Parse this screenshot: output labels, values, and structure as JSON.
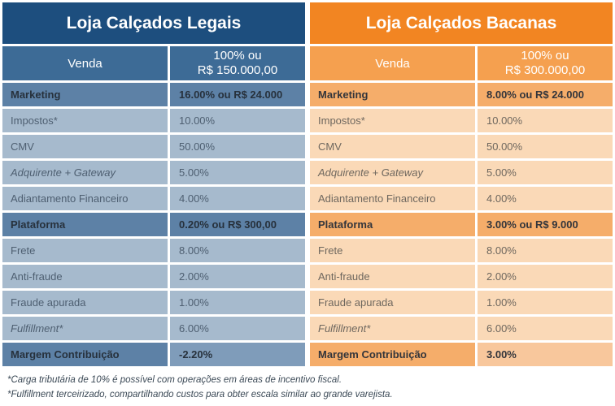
{
  "page": {
    "background": "#ffffff"
  },
  "chart_data": [
    {
      "type": "table",
      "title": "Loja Calçados Legais",
      "columns": [
        "Venda",
        "100% ou R$ 150.000,00"
      ],
      "rows": [
        [
          "Marketing",
          "16.00% ou R$ 24.000"
        ],
        [
          "Impostos*",
          "10.00%"
        ],
        [
          "CMV",
          "50.00%"
        ],
        [
          "Adquirente + Gateway",
          "5.00%"
        ],
        [
          "Adiantamento Financeiro",
          "4.00%"
        ],
        [
          "Plataforma",
          "0.20% ou R$ 300,00"
        ],
        [
          "Frete",
          "8.00%"
        ],
        [
          "Anti-fraude",
          "2.00%"
        ],
        [
          "Fraude apurada",
          "1.00%"
        ],
        [
          "Fulfillment*",
          "6.00%"
        ],
        [
          "Margem Contribuição",
          "-2.20%"
        ]
      ]
    },
    {
      "type": "table",
      "title": "Loja Calçados Bacanas",
      "columns": [
        "Venda",
        "100% ou R$ 300.000,00"
      ],
      "rows": [
        [
          "Marketing",
          "8.00% ou R$ 24.000"
        ],
        [
          "Impostos*",
          "10.00%"
        ],
        [
          "CMV",
          "50.00%"
        ],
        [
          "Adquirente + Gateway",
          "5.00%"
        ],
        [
          "Adiantamento Financeiro",
          "4.00%"
        ],
        [
          "Plataforma",
          "3.00% ou R$ 9.000"
        ],
        [
          "Frete",
          "8.00%"
        ],
        [
          "Anti-fraude",
          "2.00%"
        ],
        [
          "Fraude apurada",
          "1.00%"
        ],
        [
          "Fulfillment*",
          "6.00%"
        ],
        [
          "Margem Contribuição",
          "3.00%"
        ]
      ]
    }
  ],
  "tables": [
    {
      "id": "legais",
      "title": "Loja Calçados Legais",
      "theme": {
        "title_bg": "#1d4e7e",
        "subheader_bg": "#3d6b96",
        "highlight_bg": "#5d81a6",
        "row_bg": "#a6bacd",
        "total_value_bg": "#7f9cba",
        "text": "#4e5f71",
        "text_bold": "#27313c"
      },
      "header": {
        "label": "Venda",
        "value_lines": [
          "100% ou",
          "R$ 150.000,00"
        ]
      },
      "rows": [
        {
          "label": "Marketing",
          "value": "16.00% ou R$ 24.000",
          "style": "highlight"
        },
        {
          "label": "Impostos*",
          "value": "10.00%",
          "style": "regular"
        },
        {
          "label": "CMV",
          "value": "50.00%",
          "style": "regular"
        },
        {
          "label": "Adquirente + Gateway",
          "value": "5.00%",
          "style": "italic"
        },
        {
          "label": "Adiantamento Financeiro",
          "value": "4.00%",
          "style": "regular"
        },
        {
          "label": "Plataforma",
          "value": "0.20% ou R$ 300,00",
          "style": "highlight"
        },
        {
          "label": "Frete",
          "value": "8.00%",
          "style": "regular"
        },
        {
          "label": "Anti-fraude",
          "value": "2.00%",
          "style": "regular"
        },
        {
          "label": "Fraude apurada",
          "value": "1.00%",
          "style": "regular"
        },
        {
          "label": "Fulfillment*",
          "value": "6.00%",
          "style": "italic"
        },
        {
          "label": "Margem Contribuição",
          "value": "-2.20%",
          "style": "total"
        }
      ]
    },
    {
      "id": "bacanas",
      "title": "Loja Calçados Bacanas",
      "theme": {
        "title_bg": "#f28522",
        "subheader_bg": "#f5a04f",
        "highlight_bg": "#f5ad6a",
        "row_bg": "#fad9b7",
        "total_value_bg": "#f8c79c",
        "text": "#6e675e",
        "text_bold": "#33353b"
      },
      "header": {
        "label": "Venda",
        "value_lines": [
          "100% ou",
          "R$ 300.000,00"
        ]
      },
      "rows": [
        {
          "label": "Marketing",
          "value": "8.00% ou R$ 24.000",
          "style": "highlight"
        },
        {
          "label": "Impostos*",
          "value": "10.00%",
          "style": "regular"
        },
        {
          "label": "CMV",
          "value": "50.00%",
          "style": "regular"
        },
        {
          "label": "Adquirente + Gateway",
          "value": "5.00%",
          "style": "italic"
        },
        {
          "label": "Adiantamento Financeiro",
          "value": "4.00%",
          "style": "regular"
        },
        {
          "label": "Plataforma",
          "value": "3.00% ou R$ 9.000",
          "style": "highlight"
        },
        {
          "label": "Frete",
          "value": "8.00%",
          "style": "regular"
        },
        {
          "label": "Anti-fraude",
          "value": "2.00%",
          "style": "regular"
        },
        {
          "label": "Fraude apurada",
          "value": "1.00%",
          "style": "regular"
        },
        {
          "label": "Fulfillment*",
          "value": "6.00%",
          "style": "italic"
        },
        {
          "label": "Margem Contribuição",
          "value": "3.00%",
          "style": "total"
        }
      ]
    }
  ],
  "footnotes": [
    "*Carga tributária de 10% é possível com operações em áreas de incentivo fiscal.",
    "*Fulfillment terceirizado, compartilhando custos para obter escala similar ao grande varejista."
  ]
}
